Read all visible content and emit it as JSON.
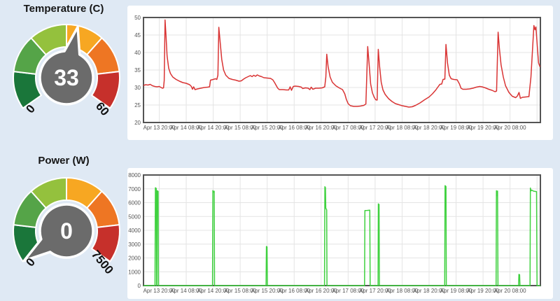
{
  "page": {
    "background": "#dfe9f4",
    "panel_color": "#ffffff"
  },
  "gauges": [
    {
      "title": "Temperature (C)",
      "value": "33",
      "value_num": 33,
      "min": 0,
      "max": 60,
      "min_label": "0",
      "max_label": "60",
      "segment_colors": [
        "#1a763a",
        "#55a448",
        "#94c13d",
        "#f7a722",
        "#ee7623",
        "#c6302b"
      ],
      "needle_color": "#6b6b6b",
      "value_text_color": "#ffffff",
      "minmax_text_color": "#111111"
    },
    {
      "title": "Power (W)",
      "value": "0",
      "value_num": 0,
      "min": 0,
      "max": 7500,
      "min_label": "0",
      "max_label": "7500",
      "segment_colors": [
        "#1a763a",
        "#55a448",
        "#94c13d",
        "#f7a722",
        "#ee7623",
        "#c6302b"
      ],
      "needle_color": "#6b6b6b",
      "value_text_color": "#ffffff",
      "minmax_text_color": "#111111"
    }
  ],
  "chart_data": [
    {
      "type": "line",
      "name": "temperature-history",
      "series_color": "#d93434",
      "grid_color": "#e4e4e4",
      "border_color": "#545454",
      "tick_color": "#555555",
      "x_unit": "hours relative to Apr 13 20:00",
      "x_domain": [
        -7,
        169.5
      ],
      "ylim": [
        20,
        50
      ],
      "y_ticks": [
        20,
        25,
        30,
        35,
        40,
        45,
        50
      ],
      "x_ticks": [
        {
          "t": 0,
          "label": "Apr 13 20:00"
        },
        {
          "t": 12,
          "label": "Apr 14 08:00"
        },
        {
          "t": 24,
          "label": "Apr 14 20:00"
        },
        {
          "t": 36,
          "label": "Apr 15 08:00"
        },
        {
          "t": 48,
          "label": "Apr 15 20:00"
        },
        {
          "t": 60,
          "label": "Apr 16 08:00"
        },
        {
          "t": 72,
          "label": "Apr 16 20:00"
        },
        {
          "t": 84,
          "label": "Apr 17 08:00"
        },
        {
          "t": 96,
          "label": "Apr 17 20:00"
        },
        {
          "t": 108,
          "label": "Apr 18 08:00"
        },
        {
          "t": 120,
          "label": "Apr 18 20:00"
        },
        {
          "t": 132,
          "label": "Apr 19 08:00"
        },
        {
          "t": 144,
          "label": "Apr 19 20:00"
        },
        {
          "t": 156,
          "label": "Apr 20 08:00"
        },
        {
          "t": 168,
          "label": ""
        }
      ],
      "points": [
        [
          -7,
          30.6
        ],
        [
          -6,
          30.8
        ],
        [
          -5,
          30.7
        ],
        [
          -4,
          30.9
        ],
        [
          -3,
          30.5
        ],
        [
          -2,
          30.3
        ],
        [
          -1,
          30.2
        ],
        [
          0,
          30.3
        ],
        [
          0.8,
          30
        ],
        [
          1.4,
          29.8
        ],
        [
          1.9,
          29.9
        ],
        [
          2.2,
          32
        ],
        [
          2.6,
          49.3
        ],
        [
          3,
          45
        ],
        [
          3.5,
          39
        ],
        [
          4.2,
          35.5
        ],
        [
          5,
          34
        ],
        [
          6,
          33
        ],
        [
          7.5,
          32.3
        ],
        [
          9,
          31.8
        ],
        [
          10.5,
          31.4
        ],
        [
          12,
          31.2
        ],
        [
          13.5,
          30.8
        ],
        [
          14.3,
          30.3
        ],
        [
          14.8,
          29.5
        ],
        [
          15.3,
          30.2
        ],
        [
          15.9,
          29.4
        ],
        [
          17,
          29.6
        ],
        [
          18.5,
          29.8
        ],
        [
          20,
          30
        ],
        [
          21.5,
          30.1
        ],
        [
          22.4,
          30.2
        ],
        [
          22.8,
          32.1
        ],
        [
          24,
          32.3
        ],
        [
          25,
          32.5
        ],
        [
          25.6,
          32.3
        ],
        [
          26.1,
          33.5
        ],
        [
          26.5,
          47.2
        ],
        [
          27.1,
          43
        ],
        [
          27.8,
          38
        ],
        [
          28.6,
          35
        ],
        [
          29.6,
          33.5
        ],
        [
          31,
          32.6
        ],
        [
          32.5,
          32.3
        ],
        [
          34,
          32.1
        ],
        [
          35.5,
          31.8
        ],
        [
          36.5,
          31.9
        ],
        [
          37.5,
          32.4
        ],
        [
          38.5,
          32.8
        ],
        [
          39.5,
          33.1
        ],
        [
          40.5,
          33.4
        ],
        [
          41.3,
          33.1
        ],
        [
          42,
          33.5
        ],
        [
          42.8,
          33.2
        ],
        [
          43.6,
          33.6
        ],
        [
          44.5,
          33.3
        ],
        [
          45.5,
          33.1
        ],
        [
          46.5,
          32.8
        ],
        [
          48,
          32.7
        ],
        [
          49.5,
          32.6
        ],
        [
          50.5,
          32.2
        ],
        [
          51.3,
          31.4
        ],
        [
          52,
          30.6
        ],
        [
          52.7,
          29.8
        ],
        [
          53.4,
          29.4
        ],
        [
          55,
          29.4
        ],
        [
          56.5,
          29.3
        ],
        [
          57.6,
          29.3
        ],
        [
          58.2,
          30.2
        ],
        [
          58.8,
          29.2
        ],
        [
          59.6,
          30.3
        ],
        [
          60.5,
          30.4
        ],
        [
          62,
          30.3
        ],
        [
          63.2,
          30.1
        ],
        [
          63.8,
          29.7
        ],
        [
          65,
          29.9
        ],
        [
          66.2,
          29.8
        ],
        [
          67,
          29.4
        ],
        [
          67.6,
          30.1
        ],
        [
          68.3,
          29.5
        ],
        [
          69.5,
          29.8
        ],
        [
          71,
          29.8
        ],
        [
          72.5,
          29.9
        ],
        [
          73.6,
          30.2
        ],
        [
          74.1,
          33
        ],
        [
          74.5,
          39.5
        ],
        [
          75.1,
          36
        ],
        [
          76,
          33
        ],
        [
          77,
          31.5
        ],
        [
          78.5,
          30.5
        ],
        [
          80,
          29.9
        ],
        [
          81.5,
          29.4
        ],
        [
          82.5,
          28.2
        ],
        [
          83.2,
          26.6
        ],
        [
          84,
          25.4
        ],
        [
          85,
          24.8
        ],
        [
          86.5,
          24.6
        ],
        [
          88,
          24.6
        ],
        [
          89.5,
          24.7
        ],
        [
          91,
          24.9
        ],
        [
          91.9,
          25.3
        ],
        [
          92.7,
          41.7
        ],
        [
          93.3,
          37
        ],
        [
          94,
          31
        ],
        [
          94.8,
          28.5
        ],
        [
          95.6,
          27.2
        ],
        [
          96.3,
          26.5
        ],
        [
          96.9,
          26.4
        ],
        [
          97.4,
          40.9
        ],
        [
          98,
          36
        ],
        [
          98.7,
          31.5
        ],
        [
          99.5,
          29.3
        ],
        [
          100.5,
          28
        ],
        [
          102,
          26.8
        ],
        [
          103.5,
          26
        ],
        [
          105,
          25.4
        ],
        [
          106.5,
          25.1
        ],
        [
          108,
          24.8
        ],
        [
          109.5,
          24.6
        ],
        [
          111,
          24.4
        ],
        [
          112.5,
          24.5
        ],
        [
          114,
          24.9
        ],
        [
          116,
          25.6
        ],
        [
          118,
          26.5
        ],
        [
          120,
          27.3
        ],
        [
          121.5,
          28.2
        ],
        [
          123,
          29.3
        ],
        [
          124,
          30.2
        ],
        [
          124.8,
          30.9
        ],
        [
          125.6,
          31
        ],
        [
          126.2,
          32.3
        ],
        [
          127,
          32.4
        ],
        [
          127.5,
          42.3
        ],
        [
          128.2,
          37
        ],
        [
          129,
          33.5
        ],
        [
          129.8,
          32.5
        ],
        [
          131,
          32.3
        ],
        [
          132.5,
          32.2
        ],
        [
          133.5,
          31
        ],
        [
          134.2,
          29.8
        ],
        [
          135,
          29.5
        ],
        [
          136.5,
          29.5
        ],
        [
          138,
          29.6
        ],
        [
          139.5,
          29.8
        ],
        [
          141,
          30.1
        ],
        [
          142.5,
          30.3
        ],
        [
          143.5,
          30.2
        ],
        [
          145,
          29.9
        ],
        [
          146.5,
          29.5
        ],
        [
          148,
          29.2
        ],
        [
          149.3,
          28.8
        ],
        [
          150,
          29
        ],
        [
          150.7,
          45.8
        ],
        [
          151.3,
          41
        ],
        [
          152,
          36.5
        ],
        [
          153,
          33
        ],
        [
          154,
          30.5
        ],
        [
          155.5,
          28.6
        ],
        [
          157,
          27.5
        ],
        [
          158.5,
          27.1
        ],
        [
          159.3,
          27.6
        ],
        [
          160,
          28.6
        ],
        [
          160.6,
          26.9
        ],
        [
          161.5,
          27.2
        ],
        [
          163,
          27.3
        ],
        [
          164.4,
          27.4
        ],
        [
          165.3,
          33
        ],
        [
          166,
          41
        ],
        [
          166.6,
          47.7
        ],
        [
          167.1,
          46.5
        ],
        [
          167.5,
          47.3
        ],
        [
          168.1,
          42
        ],
        [
          168.7,
          37
        ],
        [
          169.3,
          35.9
        ]
      ]
    },
    {
      "type": "line",
      "name": "power-history",
      "series_color": "#3fd13f",
      "grid_color": "#e4e4e4",
      "border_color": "#545454",
      "tick_color": "#555555",
      "x_unit": "hours relative to Apr 13 20:00",
      "x_domain": [
        -7,
        169.5
      ],
      "ylim": [
        0,
        8000
      ],
      "y_ticks": [
        0,
        1000,
        2000,
        3000,
        4000,
        5000,
        6000,
        7000,
        8000
      ],
      "x_ticks": [
        {
          "t": 0,
          "label": "Apr 13 20:00"
        },
        {
          "t": 12,
          "label": "Apr 14 08:00"
        },
        {
          "t": 24,
          "label": "Apr 14 20:00"
        },
        {
          "t": 36,
          "label": "Apr 15 08:00"
        },
        {
          "t": 48,
          "label": "Apr 15 20:00"
        },
        {
          "t": 60,
          "label": "Apr 16 08:00"
        },
        {
          "t": 72,
          "label": "Apr 16 20:00"
        },
        {
          "t": 84,
          "label": "Apr 17 08:00"
        },
        {
          "t": 96,
          "label": "Apr 17 20:00"
        },
        {
          "t": 108,
          "label": "Apr 18 08:00"
        },
        {
          "t": 120,
          "label": "Apr 18 20:00"
        },
        {
          "t": 132,
          "label": "Apr 19 08:00"
        },
        {
          "t": 144,
          "label": "Apr 19 20:00"
        },
        {
          "t": 156,
          "label": "Apr 20 08:00"
        },
        {
          "t": 168,
          "label": ""
        }
      ],
      "points": [
        [
          -7,
          0
        ],
        [
          -1.9,
          0
        ],
        [
          -1.7,
          7080
        ],
        [
          -1.35,
          7030
        ],
        [
          -1.2,
          0
        ],
        [
          -1.05,
          0
        ],
        [
          -0.9,
          6860
        ],
        [
          -0.5,
          6820
        ],
        [
          -0.35,
          0
        ],
        [
          23.7,
          0
        ],
        [
          23.85,
          6870
        ],
        [
          24.05,
          6790
        ],
        [
          24.25,
          6760
        ],
        [
          24.45,
          6830
        ],
        [
          24.6,
          0
        ],
        [
          47.5,
          0
        ],
        [
          47.65,
          2830
        ],
        [
          47.95,
          2800
        ],
        [
          48.1,
          0
        ],
        [
          73.5,
          0
        ],
        [
          73.65,
          7150
        ],
        [
          73.9,
          7090
        ],
        [
          74.05,
          5600
        ],
        [
          74.45,
          5480
        ],
        [
          74.6,
          0
        ],
        [
          91.3,
          0
        ],
        [
          91.45,
          5430
        ],
        [
          92.5,
          5440
        ],
        [
          93.65,
          5460
        ],
        [
          93.8,
          0
        ],
        [
          97.3,
          0
        ],
        [
          97.45,
          5910
        ],
        [
          97.75,
          5870
        ],
        [
          97.9,
          0
        ],
        [
          126.95,
          0
        ],
        [
          127.1,
          7230
        ],
        [
          127.5,
          7170
        ],
        [
          127.65,
          0
        ],
        [
          149.8,
          0
        ],
        [
          149.95,
          6860
        ],
        [
          150.2,
          6500
        ],
        [
          150.45,
          6840
        ],
        [
          150.65,
          0
        ],
        [
          159.8,
          0
        ],
        [
          159.95,
          810
        ],
        [
          160.25,
          790
        ],
        [
          160.4,
          0
        ],
        [
          164.9,
          0
        ],
        [
          165.05,
          7060
        ],
        [
          165.3,
          6850
        ],
        [
          165.6,
          6900
        ],
        [
          166.5,
          6830
        ],
        [
          167.8,
          6800
        ],
        [
          168,
          0
        ],
        [
          169.5,
          0
        ]
      ]
    }
  ]
}
